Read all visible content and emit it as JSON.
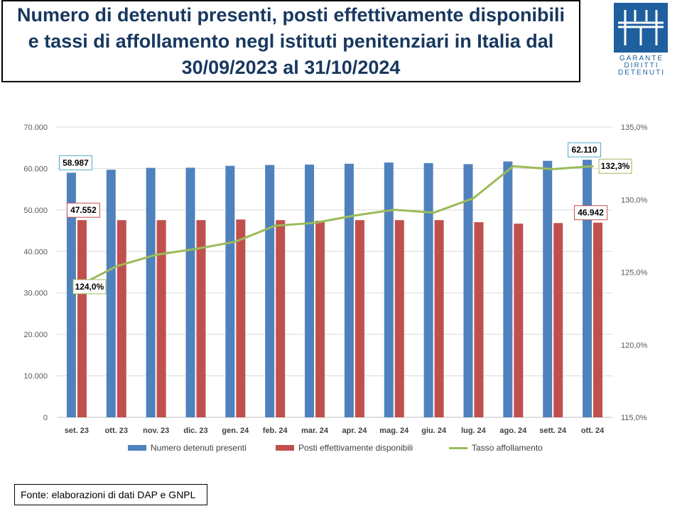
{
  "title": "Numero di detenuti presenti, posti effettivamente disponibili e tassi di affollamento negl istituti penitenziari in Italia dal 30/09/2023 al 31/10/2024",
  "logo": {
    "lines": [
      "GARANTE",
      "DIRITTI",
      "DETENUTI"
    ],
    "color": "#1f5f9e"
  },
  "source": "Fonte: elaborazioni di dati DAP e GNPL",
  "chart_data": {
    "type": "bar",
    "categories": [
      "set. 23",
      "ott. 23",
      "nov. 23",
      "dic. 23",
      "gen. 24",
      "feb. 24",
      "mar. 24",
      "apr. 24",
      "mag. 24",
      "giu. 24",
      "lug. 24",
      "ago. 24",
      "sett. 24",
      "ott. 24"
    ],
    "series": [
      {
        "name": "Numero detenuti presenti",
        "type": "bar",
        "axis": "left",
        "color": "#4f81bd",
        "values": [
          58987,
          59700,
          60150,
          60200,
          60650,
          60850,
          60950,
          61150,
          61450,
          61300,
          61050,
          61700,
          61850,
          62110
        ]
      },
      {
        "name": "Posti effettivamente disponibili",
        "type": "bar",
        "axis": "left",
        "color": "#c0504d",
        "values": [
          47552,
          47550,
          47550,
          47550,
          47700,
          47550,
          47400,
          47550,
          47550,
          47550,
          47050,
          46700,
          46850,
          46942
        ]
      },
      {
        "name": "Tasso affollamento",
        "type": "line",
        "axis": "right",
        "color": "#9bbb59",
        "values": [
          124.0,
          125.4,
          126.2,
          126.6,
          127.1,
          128.2,
          128.4,
          128.9,
          129.3,
          129.1,
          130.1,
          132.3,
          132.1,
          132.3
        ]
      }
    ],
    "left_axis": {
      "min": 0,
      "max": 70000,
      "ticks": [
        "0",
        "10.000",
        "20.000",
        "30.000",
        "40.000",
        "50.000",
        "60.000",
        "70.000"
      ]
    },
    "right_axis": {
      "min": 115,
      "max": 135,
      "ticks": [
        "115,0%",
        "120,0%",
        "125,0%",
        "130,0%",
        "135,0%"
      ]
    },
    "data_labels": [
      {
        "series": 0,
        "index": 0,
        "text": "58.987",
        "border": "#4bacc6"
      },
      {
        "series": 1,
        "index": 0,
        "text": "47.552",
        "border": "#c0504d"
      },
      {
        "series": 2,
        "index": 0,
        "text": "124,0%",
        "border": "#9bbb59"
      },
      {
        "series": 0,
        "index": 13,
        "text": "62.110",
        "border": "#4bacc6"
      },
      {
        "series": 1,
        "index": 13,
        "text": "46.942",
        "border": "#c0504d"
      },
      {
        "series": 2,
        "index": 13,
        "text": "132,3%",
        "border": "#9bbb59"
      }
    ],
    "grid": true,
    "legend_position": "bottom"
  }
}
